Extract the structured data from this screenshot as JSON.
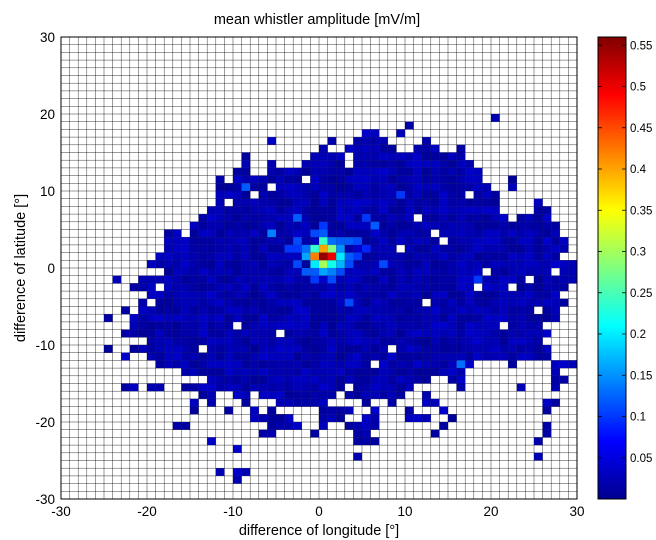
{
  "chart_data": {
    "type": "heatmap",
    "title": "mean whistler amplitude [mV/m]",
    "xlabel": "difference of longitude [°]",
    "ylabel": "difference of latitude [°]",
    "xlim": [
      -30,
      30
    ],
    "ylim": [
      -30,
      30
    ],
    "x_ticks": [
      -30,
      -20,
      -10,
      0,
      10,
      20,
      30
    ],
    "y_ticks": [
      -30,
      -20,
      -10,
      0,
      10,
      20,
      30
    ],
    "cell_size_deg": 1,
    "grid": true,
    "colormap": "jet",
    "colorbar": {
      "position": "right",
      "range": [
        0,
        0.56
      ],
      "ticks": [
        0.05,
        0.1,
        0.15,
        0.2,
        0.25,
        0.3,
        0.35,
        0.4,
        0.45,
        0.5,
        0.55
      ]
    },
    "coverage_rows": [
      {
        "y": 19,
        "segments": [
          [
            20,
            21
          ]
        ]
      },
      {
        "y": 18,
        "segments": [
          [
            10,
            11
          ]
        ]
      },
      {
        "y": 17,
        "segments": [
          [
            5,
            7
          ],
          [
            9,
            10
          ]
        ]
      },
      {
        "y": 16,
        "segments": [
          [
            -6,
            -5
          ],
          [
            1,
            2
          ],
          [
            4,
            8
          ],
          [
            12,
            13
          ]
        ]
      },
      {
        "y": 15,
        "segments": [
          [
            0,
            1
          ],
          [
            3,
            9
          ],
          [
            11,
            14
          ],
          [
            16,
            17
          ]
        ]
      },
      {
        "y": 14,
        "segments": [
          [
            -9,
            -8
          ],
          [
            -1,
            3
          ],
          [
            4,
            17
          ]
        ]
      },
      {
        "y": 13,
        "segments": [
          [
            -9,
            -8
          ],
          [
            -6,
            -5
          ],
          [
            -2,
            18
          ]
        ]
      },
      {
        "y": 12,
        "segments": [
          [
            -10,
            -8
          ],
          [
            -6,
            19
          ]
        ]
      },
      {
        "y": 11,
        "segments": [
          [
            -12,
            -11
          ],
          [
            -10,
            19
          ],
          [
            22,
            23
          ]
        ]
      },
      {
        "y": 10,
        "segments": [
          [
            -12,
            20
          ],
          [
            22,
            23
          ]
        ]
      },
      {
        "y": 9,
        "segments": [
          [
            -12,
            21
          ]
        ]
      },
      {
        "y": 8,
        "segments": [
          [
            -12,
            -11
          ],
          [
            -10,
            21
          ],
          [
            25,
            26
          ]
        ]
      },
      {
        "y": 7,
        "segments": [
          [
            -13,
            21
          ],
          [
            25,
            27
          ]
        ]
      },
      {
        "y": 6,
        "segments": [
          [
            -14,
            22
          ],
          [
            23,
            27
          ]
        ]
      },
      {
        "y": 5,
        "segments": [
          [
            -15,
            28
          ]
        ]
      },
      {
        "y": 4,
        "segments": [
          [
            -18,
            -16
          ],
          [
            -15,
            28
          ]
        ]
      },
      {
        "y": 3,
        "segments": [
          [
            -18,
            29
          ]
        ]
      },
      {
        "y": 2,
        "segments": [
          [
            -18,
            29
          ]
        ]
      },
      {
        "y": 1,
        "segments": [
          [
            -19,
            28
          ]
        ]
      },
      {
        "y": 0,
        "segments": [
          [
            -20,
            30
          ]
        ]
      },
      {
        "y": -1,
        "segments": [
          [
            -18,
            30
          ]
        ]
      },
      {
        "y": -2,
        "segments": [
          [
            -24,
            -23
          ],
          [
            -21,
            30
          ]
        ]
      },
      {
        "y": -3,
        "segments": [
          [
            -22,
            29
          ]
        ]
      },
      {
        "y": -4,
        "segments": [
          [
            -20,
            28
          ]
        ]
      },
      {
        "y": -5,
        "segments": [
          [
            -21,
            29
          ]
        ]
      },
      {
        "y": -6,
        "segments": [
          [
            -23,
            28
          ]
        ]
      },
      {
        "y": -7,
        "segments": [
          [
            -25,
            -24
          ],
          [
            -22,
            28
          ]
        ]
      },
      {
        "y": -8,
        "segments": [
          [
            -22,
            26
          ]
        ]
      },
      {
        "y": -9,
        "segments": [
          [
            -23,
            27
          ]
        ]
      },
      {
        "y": -10,
        "segments": [
          [
            -20,
            26
          ]
        ]
      },
      {
        "y": -11,
        "segments": [
          [
            -25,
            -24
          ],
          [
            -22,
            27
          ]
        ]
      },
      {
        "y": -12,
        "segments": [
          [
            -23,
            -22
          ],
          [
            -20,
            27
          ]
        ]
      },
      {
        "y": -13,
        "segments": [
          [
            -19,
            18
          ],
          [
            22,
            23
          ],
          [
            27,
            30
          ]
        ]
      },
      {
        "y": -14,
        "segments": [
          [
            -16,
            17
          ],
          [
            27,
            28
          ]
        ]
      },
      {
        "y": -15,
        "segments": [
          [
            -13,
            13
          ],
          [
            15,
            17
          ],
          [
            27,
            29
          ]
        ]
      },
      {
        "y": -16,
        "segments": [
          [
            -23,
            -21
          ],
          [
            -20,
            -18
          ],
          [
            -16,
            3
          ],
          [
            4,
            11
          ],
          [
            16,
            17
          ],
          [
            23,
            24
          ],
          [
            27,
            28
          ]
        ]
      },
      {
        "y": -17,
        "segments": [
          [
            -14,
            -12
          ],
          [
            -10,
            -8
          ],
          [
            -7,
            2
          ],
          [
            3,
            10
          ],
          [
            12,
            13
          ]
        ]
      },
      {
        "y": -18,
        "segments": [
          [
            -15,
            -14
          ],
          [
            -13,
            -12
          ],
          [
            -9,
            -8
          ],
          [
            -5,
            1
          ],
          [
            5,
            6
          ],
          [
            8,
            9
          ],
          [
            12,
            14
          ],
          [
            26,
            28
          ]
        ]
      },
      {
        "y": -19,
        "segments": [
          [
            -15,
            -14
          ],
          [
            -11,
            -10
          ],
          [
            -8,
            -7
          ],
          [
            -6,
            -5
          ],
          [
            0,
            4
          ],
          [
            6,
            7
          ],
          [
            10,
            11
          ],
          [
            14,
            15
          ],
          [
            26,
            27
          ]
        ]
      },
      {
        "y": -20,
        "segments": [
          [
            -8,
            -3
          ],
          [
            0,
            3
          ],
          [
            5,
            7
          ],
          [
            10,
            13
          ],
          [
            15,
            16
          ]
        ]
      },
      {
        "y": -21,
        "segments": [
          [
            -17,
            -15
          ],
          [
            -6,
            -2
          ],
          [
            0,
            1
          ],
          [
            3,
            7
          ],
          [
            14,
            15
          ],
          [
            26,
            27
          ]
        ]
      },
      {
        "y": -22,
        "segments": [
          [
            -7,
            -5
          ],
          [
            -1,
            0
          ],
          [
            4,
            6
          ],
          [
            13,
            14
          ],
          [
            26,
            27
          ]
        ]
      },
      {
        "y": -23,
        "segments": [
          [
            -13,
            -12
          ],
          [
            4,
            7
          ],
          [
            25,
            26
          ]
        ]
      },
      {
        "y": -24,
        "segments": [
          [
            -10,
            -9
          ]
        ]
      },
      {
        "y": -25,
        "segments": [
          [
            4,
            5
          ],
          [
            25,
            26
          ]
        ]
      },
      {
        "y": -27,
        "segments": [
          [
            -12,
            -11
          ],
          [
            -10,
            -8
          ]
        ]
      },
      {
        "y": -28,
        "segments": [
          [
            -10,
            -9
          ]
        ]
      }
    ],
    "base_value": 0.025,
    "hot_cells": [
      {
        "x": 0,
        "y": 1,
        "v": 0.55
      },
      {
        "x": 1,
        "y": 1,
        "v": 0.5
      },
      {
        "x": 0,
        "y": 2,
        "v": 0.4
      },
      {
        "x": -1,
        "y": 1,
        "v": 0.42
      },
      {
        "x": 1,
        "y": 2,
        "v": 0.28
      },
      {
        "x": 2,
        "y": 1,
        "v": 0.2
      },
      {
        "x": 0,
        "y": 0,
        "v": 0.3
      },
      {
        "x": 1,
        "y": 0,
        "v": 0.22
      },
      {
        "x": -1,
        "y": 2,
        "v": 0.24
      },
      {
        "x": -1,
        "y": 0,
        "v": 0.2
      },
      {
        "x": 0,
        "y": 3,
        "v": 0.24
      },
      {
        "x": 2,
        "y": 2,
        "v": 0.15
      },
      {
        "x": -2,
        "y": 1,
        "v": 0.16
      },
      {
        "x": -2,
        "y": 2,
        "v": 0.13
      },
      {
        "x": 2,
        "y": 0,
        "v": 0.17
      },
      {
        "x": 3,
        "y": 1,
        "v": 0.12
      },
      {
        "x": 3,
        "y": 3,
        "v": 0.12
      },
      {
        "x": -2,
        "y": -1,
        "v": 0.12
      },
      {
        "x": 1,
        "y": -1,
        "v": 0.14
      },
      {
        "x": 0,
        "y": -1,
        "v": 0.16
      },
      {
        "x": -3,
        "y": 3,
        "v": 0.11
      },
      {
        "x": 1,
        "y": 3,
        "v": 0.13
      },
      {
        "x": -1,
        "y": -1,
        "v": 0.12
      },
      {
        "x": 2,
        "y": 3,
        "v": 0.12
      },
      {
        "x": 0,
        "y": 4,
        "v": 0.12
      },
      {
        "x": -1,
        "y": 4,
        "v": 0.11
      },
      {
        "x": 2,
        "y": -1,
        "v": 0.11
      },
      {
        "x": -3,
        "y": 0,
        "v": 0.11
      },
      {
        "x": 3,
        "y": 0,
        "v": 0.11
      },
      {
        "x": 4,
        "y": 3,
        "v": 0.11
      },
      {
        "x": -1,
        "y": -2,
        "v": 0.1
      },
      {
        "x": 1,
        "y": -2,
        "v": 0.11
      },
      {
        "x": 4,
        "y": 1,
        "v": 0.1
      },
      {
        "x": 0,
        "y": 5,
        "v": 0.1
      },
      {
        "x": -3,
        "y": 2,
        "v": 0.1
      },
      {
        "x": -6,
        "y": 4,
        "v": 0.14
      },
      {
        "x": -3,
        "y": 6,
        "v": 0.12
      },
      {
        "x": 6,
        "y": 5,
        "v": 0.12
      },
      {
        "x": 7,
        "y": 0,
        "v": 0.11
      },
      {
        "x": 5,
        "y": 6,
        "v": 0.1
      },
      {
        "x": 3,
        "y": -5,
        "v": 0.11
      },
      {
        "x": -9,
        "y": 10,
        "v": 0.12
      },
      {
        "x": 9,
        "y": 9,
        "v": 0.1
      },
      {
        "x": 16,
        "y": -13,
        "v": 0.13
      },
      {
        "x": 18,
        "y": -2,
        "v": 0.1
      },
      {
        "x": -4,
        "y": 2,
        "v": 0.1
      },
      {
        "x": 5,
        "y": 2,
        "v": 0.09
      }
    ],
    "white_holes": [
      [
        -8,
        9
      ],
      [
        -6,
        10
      ],
      [
        11,
        6
      ],
      [
        13,
        4
      ],
      [
        18,
        -3
      ],
      [
        19,
        -1
      ],
      [
        22,
        -3
      ],
      [
        24,
        -2
      ],
      [
        27,
        -1
      ],
      [
        -10,
        -8
      ],
      [
        -14,
        -11
      ],
      [
        -5,
        -9
      ],
      [
        8,
        -11
      ],
      [
        12,
        -5
      ],
      [
        14,
        3
      ],
      [
        17,
        9
      ],
      [
        -20,
        -5
      ],
      [
        -19,
        -3
      ],
      [
        -22,
        -6
      ],
      [
        21,
        -8
      ],
      [
        25,
        -6
      ],
      [
        28,
        -4
      ],
      [
        6,
        -13
      ],
      [
        -2,
        11
      ],
      [
        3,
        13
      ],
      [
        9,
        2
      ]
    ]
  }
}
